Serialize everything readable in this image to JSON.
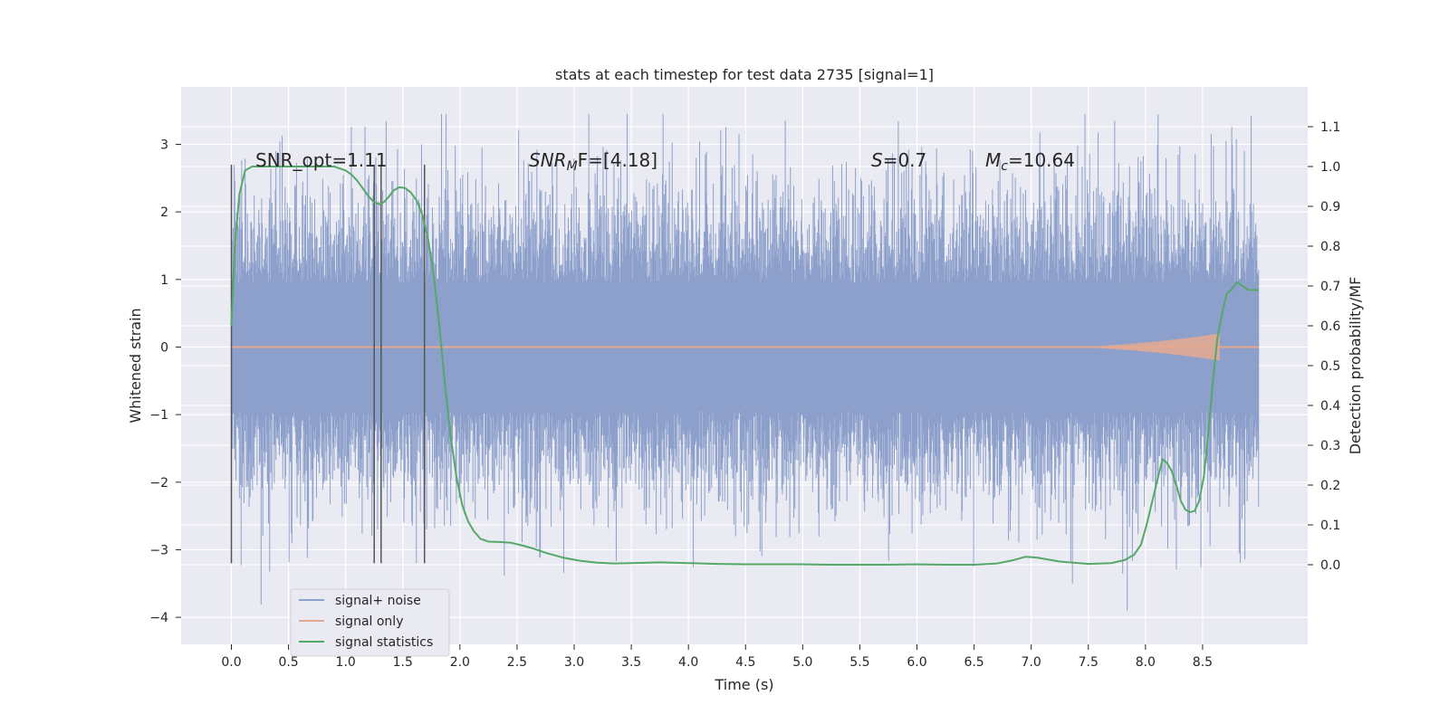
{
  "chart_data": {
    "type": "line",
    "title": "stats at each timestep for test data 2735 [signal=1]",
    "xlabel": "Time (s)",
    "ylabel": "Whitened strain",
    "ylabel_right": "Detection probability/MF",
    "xlim": [
      -0.44,
      9.42
    ],
    "ylim": [
      -4.4,
      3.85
    ],
    "ylim_right": [
      -0.2,
      1.2
    ],
    "x_ticks": [
      "0.0",
      "0.5",
      "1.0",
      "1.5",
      "2.0",
      "2.5",
      "3.0",
      "3.5",
      "4.0",
      "4.5",
      "5.0",
      "5.5",
      "6.0",
      "6.5",
      "7.0",
      "7.5",
      "8.0",
      "8.5"
    ],
    "y_ticks": [
      "−4",
      "−3",
      "−2",
      "−1",
      "0",
      "1",
      "2",
      "3"
    ],
    "y_right_ticks": [
      "0.0",
      "0.1",
      "0.2",
      "0.3",
      "0.4",
      "0.5",
      "0.6",
      "0.7",
      "0.8",
      "0.9",
      "1.0",
      "1.1"
    ],
    "grid": true,
    "background": "#eaeaf2",
    "colors": {
      "signal_noise": "#8da0cb",
      "signal_only": "#e5a98f",
      "signal_statistics": "#55a868",
      "vlines": "#555555"
    },
    "noise_band": {
      "t_start": 0.0,
      "t_end": 8.99,
      "core_low": -0.9,
      "core_high": 0.9
    },
    "signal_only": {
      "t_start": 0.0,
      "t_end": 8.99,
      "chirp_peak_time": 8.65,
      "chirp_peak_amplitude": 0.2
    },
    "vlines": {
      "times": [
        0.0,
        1.25,
        1.31,
        1.69
      ],
      "ymin": -3.2,
      "ymax": 2.7
    },
    "annotations": {
      "snr_opt": "SNR_opt=1.11",
      "snr_mf_name": "SNR",
      "snr_mf_sub": "M",
      "snr_mf_rest": "F=[4.18]",
      "s_name": "S",
      "s_rest": "=0.7",
      "mc_name": "M",
      "mc_sub": "c",
      "mc_rest": "=10.64"
    },
    "legend": {
      "position": "lower-left",
      "entries": [
        "signal+ noise",
        "signal only",
        "signal statistics"
      ]
    },
    "series": [
      {
        "name": "signal statistics",
        "axis": "right",
        "x": [
          0.0,
          0.03,
          0.07,
          0.12,
          0.18,
          0.25,
          0.35,
          0.5,
          0.7,
          0.9,
          1.0,
          1.05,
          1.1,
          1.15,
          1.2,
          1.25,
          1.3,
          1.34,
          1.38,
          1.42,
          1.47,
          1.52,
          1.57,
          1.62,
          1.67,
          1.72,
          1.77,
          1.82,
          1.87,
          1.92,
          1.97,
          2.02,
          2.07,
          2.12,
          2.18,
          2.25,
          2.35,
          2.45,
          2.55,
          2.65,
          2.75,
          2.9,
          3.05,
          3.2,
          3.35,
          3.5,
          3.75,
          4.0,
          4.25,
          4.5,
          4.75,
          5.0,
          5.25,
          5.5,
          5.75,
          6.0,
          6.25,
          6.5,
          6.7,
          6.85,
          6.95,
          7.05,
          7.25,
          7.5,
          7.7,
          7.82,
          7.9,
          7.96,
          8.01,
          8.06,
          8.11,
          8.15,
          8.19,
          8.23,
          8.27,
          8.31,
          8.35,
          8.39,
          8.43,
          8.47,
          8.51,
          8.55,
          8.59,
          8.63,
          8.67,
          8.71,
          8.75,
          8.8,
          8.85,
          8.9,
          8.95,
          8.99
        ],
        "y": [
          0.6,
          0.8,
          0.93,
          0.99,
          1.0,
          1.0,
          1.0,
          1.0,
          1.0,
          1.0,
          0.99,
          0.98,
          0.965,
          0.945,
          0.925,
          0.91,
          0.905,
          0.912,
          0.925,
          0.94,
          0.948,
          0.946,
          0.935,
          0.915,
          0.88,
          0.82,
          0.73,
          0.6,
          0.45,
          0.32,
          0.22,
          0.15,
          0.11,
          0.085,
          0.065,
          0.058,
          0.057,
          0.055,
          0.048,
          0.04,
          0.03,
          0.018,
          0.01,
          0.005,
          0.003,
          0.004,
          0.006,
          0.004,
          0.002,
          0.001,
          0.001,
          0.001,
          0.0,
          0.0,
          0.0,
          0.001,
          0.0,
          0.0,
          0.003,
          0.012,
          0.02,
          0.018,
          0.008,
          0.002,
          0.004,
          0.012,
          0.025,
          0.05,
          0.1,
          0.16,
          0.22,
          0.265,
          0.255,
          0.235,
          0.2,
          0.16,
          0.138,
          0.132,
          0.135,
          0.16,
          0.22,
          0.33,
          0.46,
          0.57,
          0.63,
          0.68,
          0.69,
          0.71,
          0.7,
          0.69,
          0.69,
          0.69
        ]
      },
      {
        "name": "signal+ noise",
        "axis": "left"
      },
      {
        "name": "signal only",
        "axis": "left"
      }
    ]
  }
}
